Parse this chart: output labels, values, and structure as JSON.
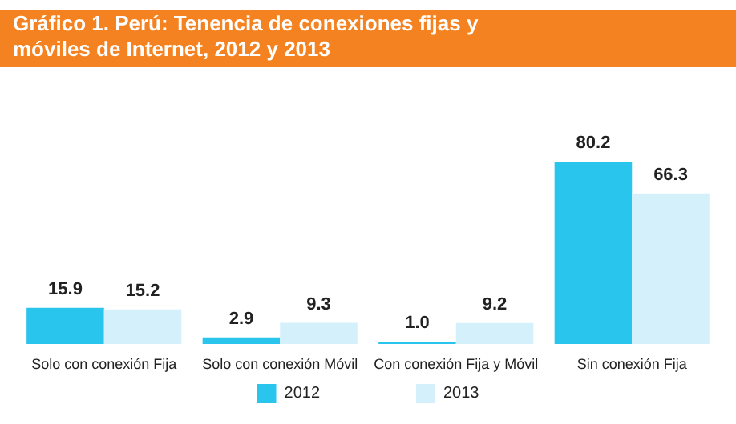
{
  "chart_data": {
    "type": "bar",
    "title": "Gráfico 1. Perú: Tenencia de conexiones fijas y móviles de Internet, 2012 y 2013",
    "categories": [
      "Solo con conexión Fija",
      "Solo con conexión Móvil",
      "Con conexión Fija y Móvil",
      "Sin conexión Fija"
    ],
    "series": [
      {
        "name": "2012",
        "color": "#29c5ec",
        "values": [
          15.9,
          2.9,
          1.0,
          80.2
        ],
        "value_labels": [
          "15.9",
          "2.9",
          "1.0",
          "80.2"
        ]
      },
      {
        "name": "2013",
        "color": "#d4f1fb",
        "values": [
          15.2,
          9.3,
          9.2,
          66.3
        ],
        "value_labels": [
          "15.2",
          "9.3",
          "9.2",
          "66.3"
        ]
      }
    ],
    "legend": "bottom"
  }
}
